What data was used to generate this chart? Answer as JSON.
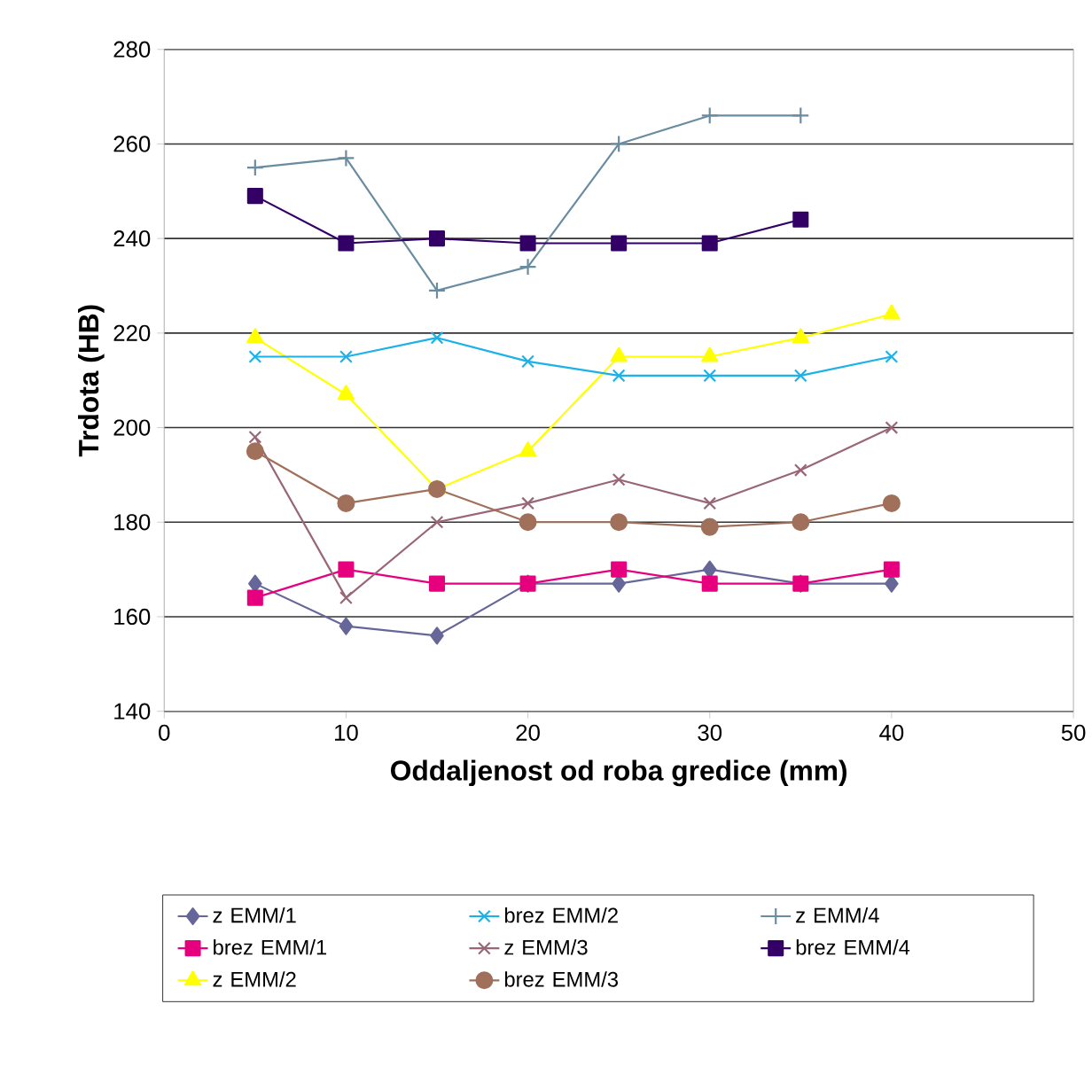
{
  "chart_data": {
    "type": "line",
    "xlabel": "Oddaljenost od roba gredice (mm)",
    "ylabel": "Trdota (HB)",
    "x": [
      5,
      10,
      15,
      20,
      25,
      30,
      35,
      40
    ],
    "xlim": [
      0,
      50
    ],
    "xticks": [
      0,
      10,
      20,
      30,
      40,
      50
    ],
    "ylim": [
      140,
      280
    ],
    "yticks": [
      140,
      160,
      180,
      200,
      220,
      240,
      260,
      280
    ],
    "grid": "y",
    "legend": "bottom",
    "line_style": "solid",
    "series": [
      {
        "name": "z EMM/1",
        "color": "#666699",
        "marker": "diamond",
        "values": [
          167,
          158,
          156,
          167,
          167,
          170,
          167,
          167
        ]
      },
      {
        "name": "brez EMM/1",
        "color": "#e6007e",
        "marker": "square",
        "values": [
          164,
          170,
          167,
          167,
          170,
          167,
          167,
          170
        ]
      },
      {
        "name": "z EMM/2",
        "color": "#ffff00",
        "marker": "triangle",
        "values": [
          219,
          207,
          187,
          195,
          215,
          215,
          219,
          224
        ]
      },
      {
        "name": "brez EMM/2",
        "color": "#1ab2e8",
        "marker": "cross",
        "values": [
          215,
          215,
          219,
          214,
          211,
          211,
          211,
          215
        ]
      },
      {
        "name": "z EMM/3",
        "color": "#996677",
        "marker": "cross",
        "values": [
          198,
          164,
          180,
          184,
          189,
          184,
          191,
          200
        ]
      },
      {
        "name": "brez EMM/3",
        "color": "#a0705a",
        "marker": "circle",
        "values": [
          195,
          184,
          187,
          180,
          180,
          179,
          180,
          184
        ]
      },
      {
        "name": "z EMM/4",
        "color": "#6a8ca0",
        "marker": "plus",
        "x": [
          5,
          10,
          15,
          20,
          25,
          30,
          35
        ],
        "values": [
          255,
          257,
          229,
          234,
          260,
          266,
          266
        ]
      },
      {
        "name": "brez EMM/4",
        "color": "#330066",
        "marker": "square",
        "x": [
          5,
          10,
          15,
          20,
          25,
          30,
          35
        ],
        "values": [
          249,
          239,
          240,
          239,
          239,
          239,
          244
        ]
      }
    ]
  }
}
